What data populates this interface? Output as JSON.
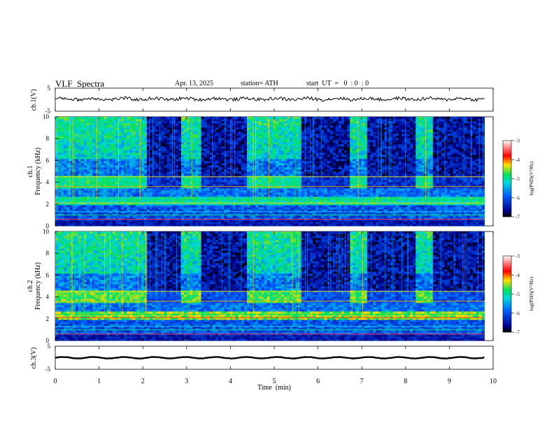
{
  "header": {
    "title": "VLF  Spectra",
    "date": "Apr. 13, 2025",
    "station": "station= ATH",
    "start_ut": "start  UT  =   0  : 0  : 0"
  },
  "chart_data": [
    {
      "type": "line",
      "panel": "ch1-waveform",
      "ylabel": "ch.1(V)",
      "ylim": [
        -5,
        5
      ],
      "y_ticks": [
        "5",
        "-5"
      ],
      "xlim": [
        0,
        10
      ],
      "mean_level_v": 0.3,
      "data_end_min": 9.8
    },
    {
      "type": "heatmap",
      "panel": "ch1-spectrogram",
      "ylabel": "ch.1\nFrequency (kHz)",
      "ylim": [
        0,
        10
      ],
      "y_ticks": [
        "0",
        "2",
        "4",
        "6",
        "8",
        "10"
      ],
      "xlim": [
        0,
        10
      ],
      "data_end_min": 9.8,
      "quiet_intervals_min": [
        [
          2.1,
          2.9
        ],
        [
          3.3,
          4.4
        ],
        [
          5.65,
          6.75
        ],
        [
          7.1,
          8.25
        ],
        [
          8.6,
          9.8
        ]
      ],
      "colorbar": {
        "label": "log(PSD)(V²/Hz)",
        "range": [
          -7,
          -3
        ],
        "ticks": [
          "-3",
          "-4",
          "-5",
          "-6",
          "-7"
        ]
      }
    },
    {
      "type": "heatmap",
      "panel": "ch2-spectrogram",
      "ylabel": "ch.2\nFrequency (kHz)",
      "ylim": [
        0,
        10
      ],
      "y_ticks": [
        "0",
        "2",
        "4",
        "6",
        "8",
        "10"
      ],
      "xlim": [
        0,
        10
      ],
      "data_end_min": 9.8,
      "quiet_intervals_min": [
        [
          2.1,
          2.9
        ],
        [
          3.3,
          4.4
        ],
        [
          5.65,
          6.75
        ],
        [
          7.1,
          8.25
        ],
        [
          8.6,
          9.8
        ]
      ],
      "colorbar": {
        "label": "log(PSD)(V²/Hz)",
        "range": [
          -7,
          -3
        ],
        "ticks": [
          "-3",
          "-4",
          "-5",
          "-6",
          "-7"
        ]
      }
    },
    {
      "type": "line",
      "panel": "ch3-waveform",
      "ylabel": "ch.3(V)",
      "ylim": [
        -5,
        5
      ],
      "y_ticks": [
        "5",
        "-5"
      ],
      "xlim": [
        0,
        10
      ],
      "mean_level_v": 0.0,
      "data_end_min": 9.8
    }
  ],
  "x_axis": {
    "label": "Time  (min)",
    "ticks": [
      "0",
      "1",
      "2",
      "3",
      "4",
      "5",
      "6",
      "7",
      "8",
      "9",
      "10"
    ]
  },
  "colors": {
    "low": "#00008b",
    "mid_low": "#0060ff",
    "mid": "#00e060",
    "mid_high": "#ffe000",
    "high": "#ff0000",
    "top": "#ffffff"
  }
}
